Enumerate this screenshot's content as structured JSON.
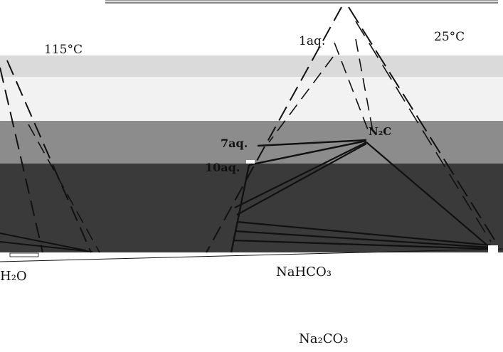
{
  "colors": {
    "background": "#ffffff",
    "ink": "#111111",
    "band_light": "#dadada",
    "band_lighter": "#f2f2f2",
    "band_mid": "#8c8c8c",
    "band_dark": "#3a3a3a"
  },
  "labels": {
    "temp_left": "115°C",
    "temp_right": "25°C",
    "phase_1aq": "1aq.",
    "phase_7aq": "7aq.",
    "phase_10aq": "10aq.",
    "phase_nac": "N₂C",
    "component_water": "H₂O",
    "component_nahco3": "NaHCO₃",
    "component_na2co3": "Na₂CO₃"
  }
}
